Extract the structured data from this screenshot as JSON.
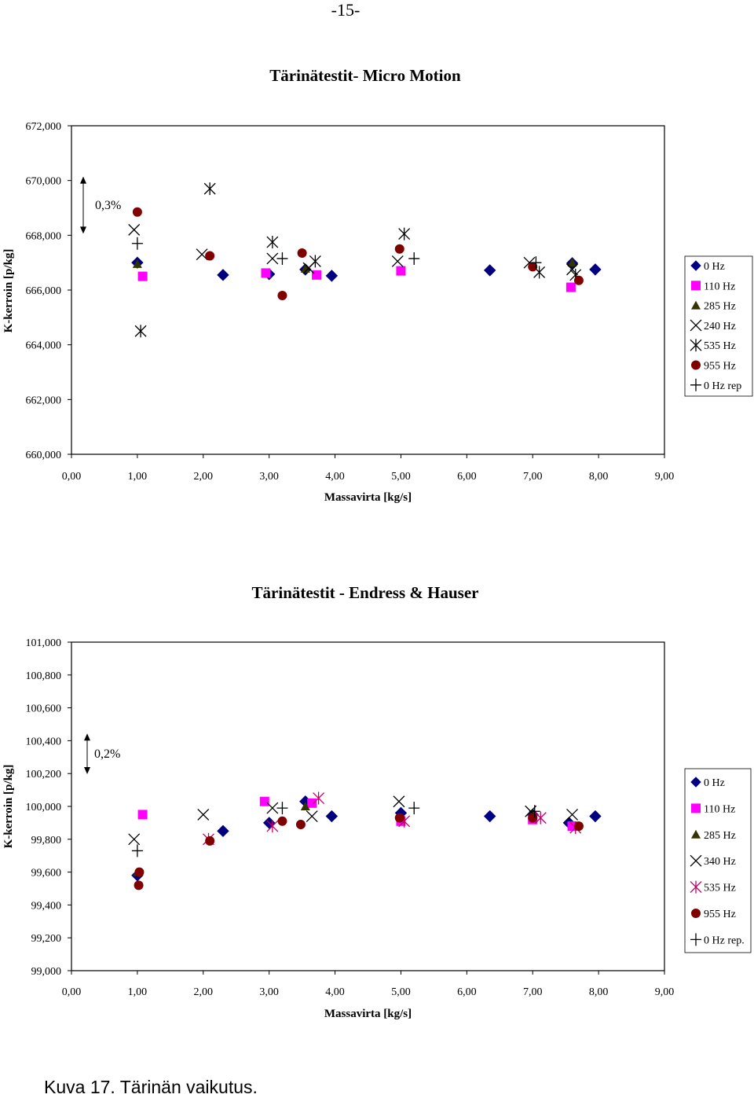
{
  "page_number": "-15-",
  "caption": "Kuva 17. Tärinän vaikutus.",
  "colors": {
    "0 Hz": "#000080",
    "110 Hz": "#ff00ff",
    "285 Hz": "#333300",
    "955 Hz": "#800000",
    "cross": "#000000",
    "535 Hz (chart 2)": "#c0006a"
  },
  "chart_data": [
    {
      "type": "scatter",
      "title": "Tärinätestit- Micro Motion",
      "xlabel": "Massavirta [kg/s]",
      "ylabel": "K-kerroin  [p/kg]",
      "xlim": [
        0,
        9
      ],
      "ylim": [
        660,
        672
      ],
      "x_ticks": [
        "0,00",
        "1,00",
        "2,00",
        "3,00",
        "4,00",
        "5,00",
        "6,00",
        "7,00",
        "8,00",
        "9,00"
      ],
      "y_ticks": [
        "660,000",
        "662,000",
        "664,000",
        "666,000",
        "668,000",
        "670,000",
        "672,000"
      ],
      "annotation": "0,3%",
      "annotation_range": [
        668.2,
        670.0
      ],
      "grid": false,
      "legend_position": "right",
      "series": [
        {
          "name": "0 Hz",
          "marker": "diamond",
          "points": [
            [
              1.0,
              667.0
            ],
            [
              2.3,
              666.55
            ],
            [
              3.0,
              666.58
            ],
            [
              3.55,
              666.75
            ],
            [
              3.95,
              666.52
            ],
            [
              6.35,
              666.72
            ],
            [
              7.6,
              666.98
            ],
            [
              7.95,
              666.75
            ]
          ]
        },
        {
          "name": "110 Hz",
          "marker": "square",
          "points": [
            [
              1.08,
              666.5
            ],
            [
              2.95,
              666.62
            ],
            [
              3.72,
              666.55
            ],
            [
              5.0,
              666.7
            ],
            [
              7.58,
              666.1
            ]
          ]
        },
        {
          "name": "285 Hz",
          "marker": "triangle",
          "points": [
            [
              1.0,
              666.95
            ],
            [
              3.55,
              666.78
            ],
            [
              7.6,
              667.0
            ]
          ]
        },
        {
          "name": "240 Hz",
          "marker": "x",
          "points": [
            [
              0.95,
              668.2
            ],
            [
              1.98,
              667.3
            ],
            [
              3.05,
              667.15
            ],
            [
              3.6,
              666.8
            ],
            [
              4.95,
              667.05
            ],
            [
              6.95,
              667.0
            ],
            [
              7.6,
              666.75
            ]
          ]
        },
        {
          "name": "535 Hz",
          "marker": "asterisk",
          "points": [
            [
              1.05,
              664.5
            ],
            [
              2.1,
              669.7
            ],
            [
              3.05,
              667.75
            ],
            [
              3.7,
              667.05
            ],
            [
              5.05,
              668.05
            ],
            [
              7.1,
              666.65
            ],
            [
              7.65,
              666.55
            ]
          ]
        },
        {
          "name": "955 Hz",
          "marker": "circle",
          "points": [
            [
              1.0,
              668.85
            ],
            [
              2.1,
              667.25
            ],
            [
              3.2,
              665.8
            ],
            [
              3.5,
              667.35
            ],
            [
              4.98,
              667.5
            ],
            [
              7.0,
              666.85
            ],
            [
              7.7,
              666.35
            ]
          ]
        },
        {
          "name": "0 Hz rep",
          "marker": "plus",
          "points": [
            [
              1.0,
              667.7
            ],
            [
              3.2,
              667.15
            ],
            [
              5.2,
              667.15
            ],
            [
              7.05,
              667.0
            ]
          ]
        }
      ]
    },
    {
      "type": "scatter",
      "title": "Tärinätestit - Endress & Hauser",
      "xlabel": "Massavirta [kg/s]",
      "ylabel": "K-kerroin  [p/kg]",
      "xlim": [
        0,
        9
      ],
      "ylim": [
        99.0,
        101.0
      ],
      "x_ticks": [
        "0,00",
        "1,00",
        "2,00",
        "3,00",
        "4,00",
        "5,00",
        "6,00",
        "7,00",
        "8,00",
        "9,00"
      ],
      "y_ticks": [
        "99,000",
        "99,200",
        "99,400",
        "99,600",
        "99,800",
        "100,000",
        "100,200",
        "100,400",
        "100,600",
        "100,800",
        "101,000"
      ],
      "annotation": "0,2%",
      "annotation_range": [
        100.22,
        100.42
      ],
      "grid": false,
      "legend_position": "right",
      "series": [
        {
          "name": "0 Hz",
          "marker": "diamond",
          "points": [
            [
              1.0,
              99.58
            ],
            [
              2.3,
              99.85
            ],
            [
              3.0,
              99.9
            ],
            [
              3.55,
              100.03
            ],
            [
              3.95,
              99.94
            ],
            [
              5.0,
              99.96
            ],
            [
              6.35,
              99.94
            ],
            [
              7.0,
              99.95
            ],
            [
              7.55,
              99.9
            ],
            [
              7.95,
              99.94
            ]
          ]
        },
        {
          "name": "110 Hz",
          "marker": "square",
          "points": [
            [
              1.08,
              99.95
            ],
            [
              2.93,
              100.03
            ],
            [
              3.65,
              100.02
            ],
            [
              5.0,
              99.91
            ],
            [
              7.0,
              99.92
            ],
            [
              7.6,
              99.88
            ]
          ]
        },
        {
          "name": "285 Hz",
          "marker": "triangle",
          "points": [
            [
              1.0,
              99.6
            ],
            [
              3.55,
              100.0
            ],
            [
              7.0,
              99.95
            ]
          ]
        },
        {
          "name": "340 Hz",
          "marker": "x",
          "points": [
            [
              0.95,
              99.8
            ],
            [
              2.0,
              99.95
            ],
            [
              3.05,
              99.99
            ],
            [
              3.65,
              99.94
            ],
            [
              4.97,
              100.03
            ],
            [
              6.97,
              99.97
            ],
            [
              7.6,
              99.95
            ]
          ]
        },
        {
          "name": "535 Hz",
          "marker": "asterisk",
          "points": [
            [
              2.08,
              99.8
            ],
            [
              3.05,
              99.88
            ],
            [
              3.75,
              100.05
            ],
            [
              5.05,
              99.91
            ],
            [
              7.12,
              99.93
            ],
            [
              7.65,
              99.87
            ]
          ]
        },
        {
          "name": "955 Hz",
          "marker": "circle",
          "points": [
            [
              1.02,
              99.52
            ],
            [
              1.03,
              99.6
            ],
            [
              2.1,
              99.79
            ],
            [
              3.2,
              99.91
            ],
            [
              3.48,
              99.89
            ],
            [
              4.98,
              99.93
            ],
            [
              7.0,
              99.93
            ],
            [
              7.7,
              99.88
            ]
          ]
        },
        {
          "name": "0 Hz rep.",
          "marker": "plus",
          "points": [
            [
              1.0,
              99.73
            ],
            [
              3.2,
              99.99
            ],
            [
              5.2,
              99.99
            ],
            [
              7.03,
              99.97
            ]
          ]
        }
      ]
    }
  ]
}
